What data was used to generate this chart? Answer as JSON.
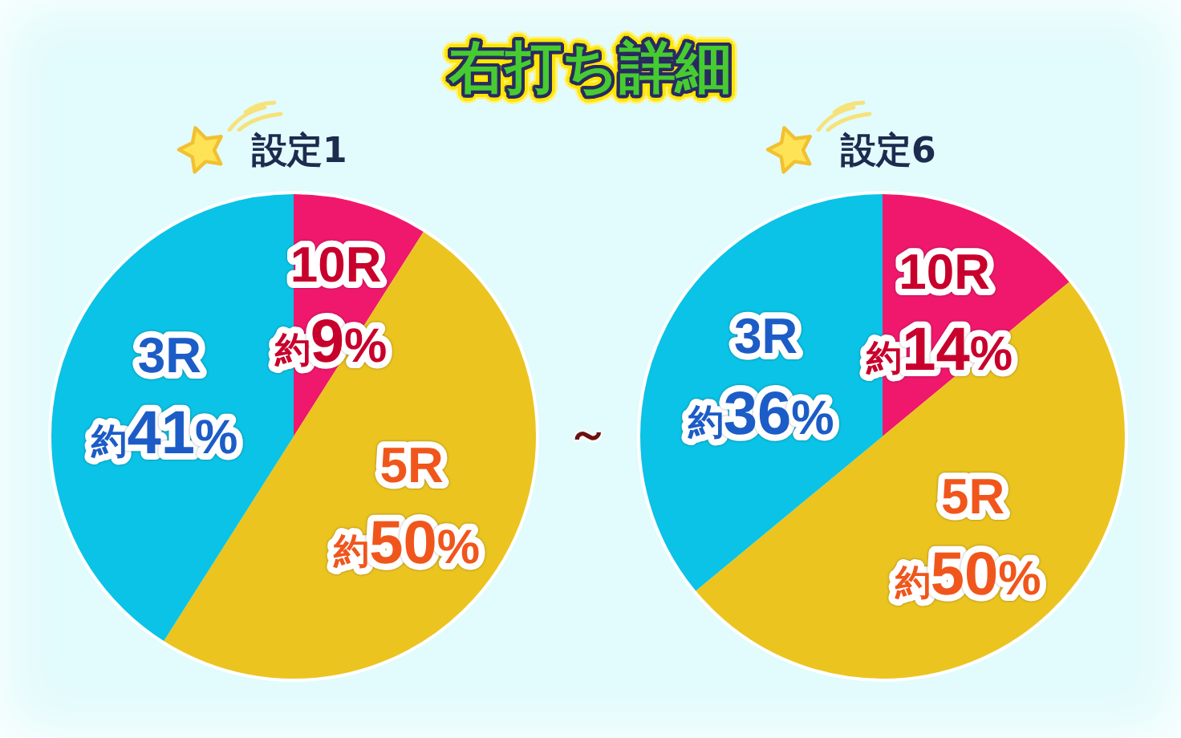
{
  "chart_data": [
    {
      "type": "pie",
      "title": "右打ち詳細",
      "subtitle": "設定1",
      "categories": [
        "10R",
        "5R",
        "3R"
      ],
      "values": [
        9,
        50,
        41
      ],
      "colors": [
        "#f0186c",
        "#ebc420",
        "#0ac3e6"
      ],
      "value_labels": [
        "約9%",
        "約50%",
        "約41%"
      ],
      "annotations": [
        "～"
      ]
    },
    {
      "type": "pie",
      "subtitle": "設定6",
      "categories": [
        "10R",
        "5R",
        "3R"
      ],
      "values": [
        14,
        50,
        36
      ],
      "colors": [
        "#f0186c",
        "#ebc420",
        "#0ac3e6"
      ],
      "value_labels": [
        "約14%",
        "約50%",
        "約36%"
      ]
    }
  ]
}
